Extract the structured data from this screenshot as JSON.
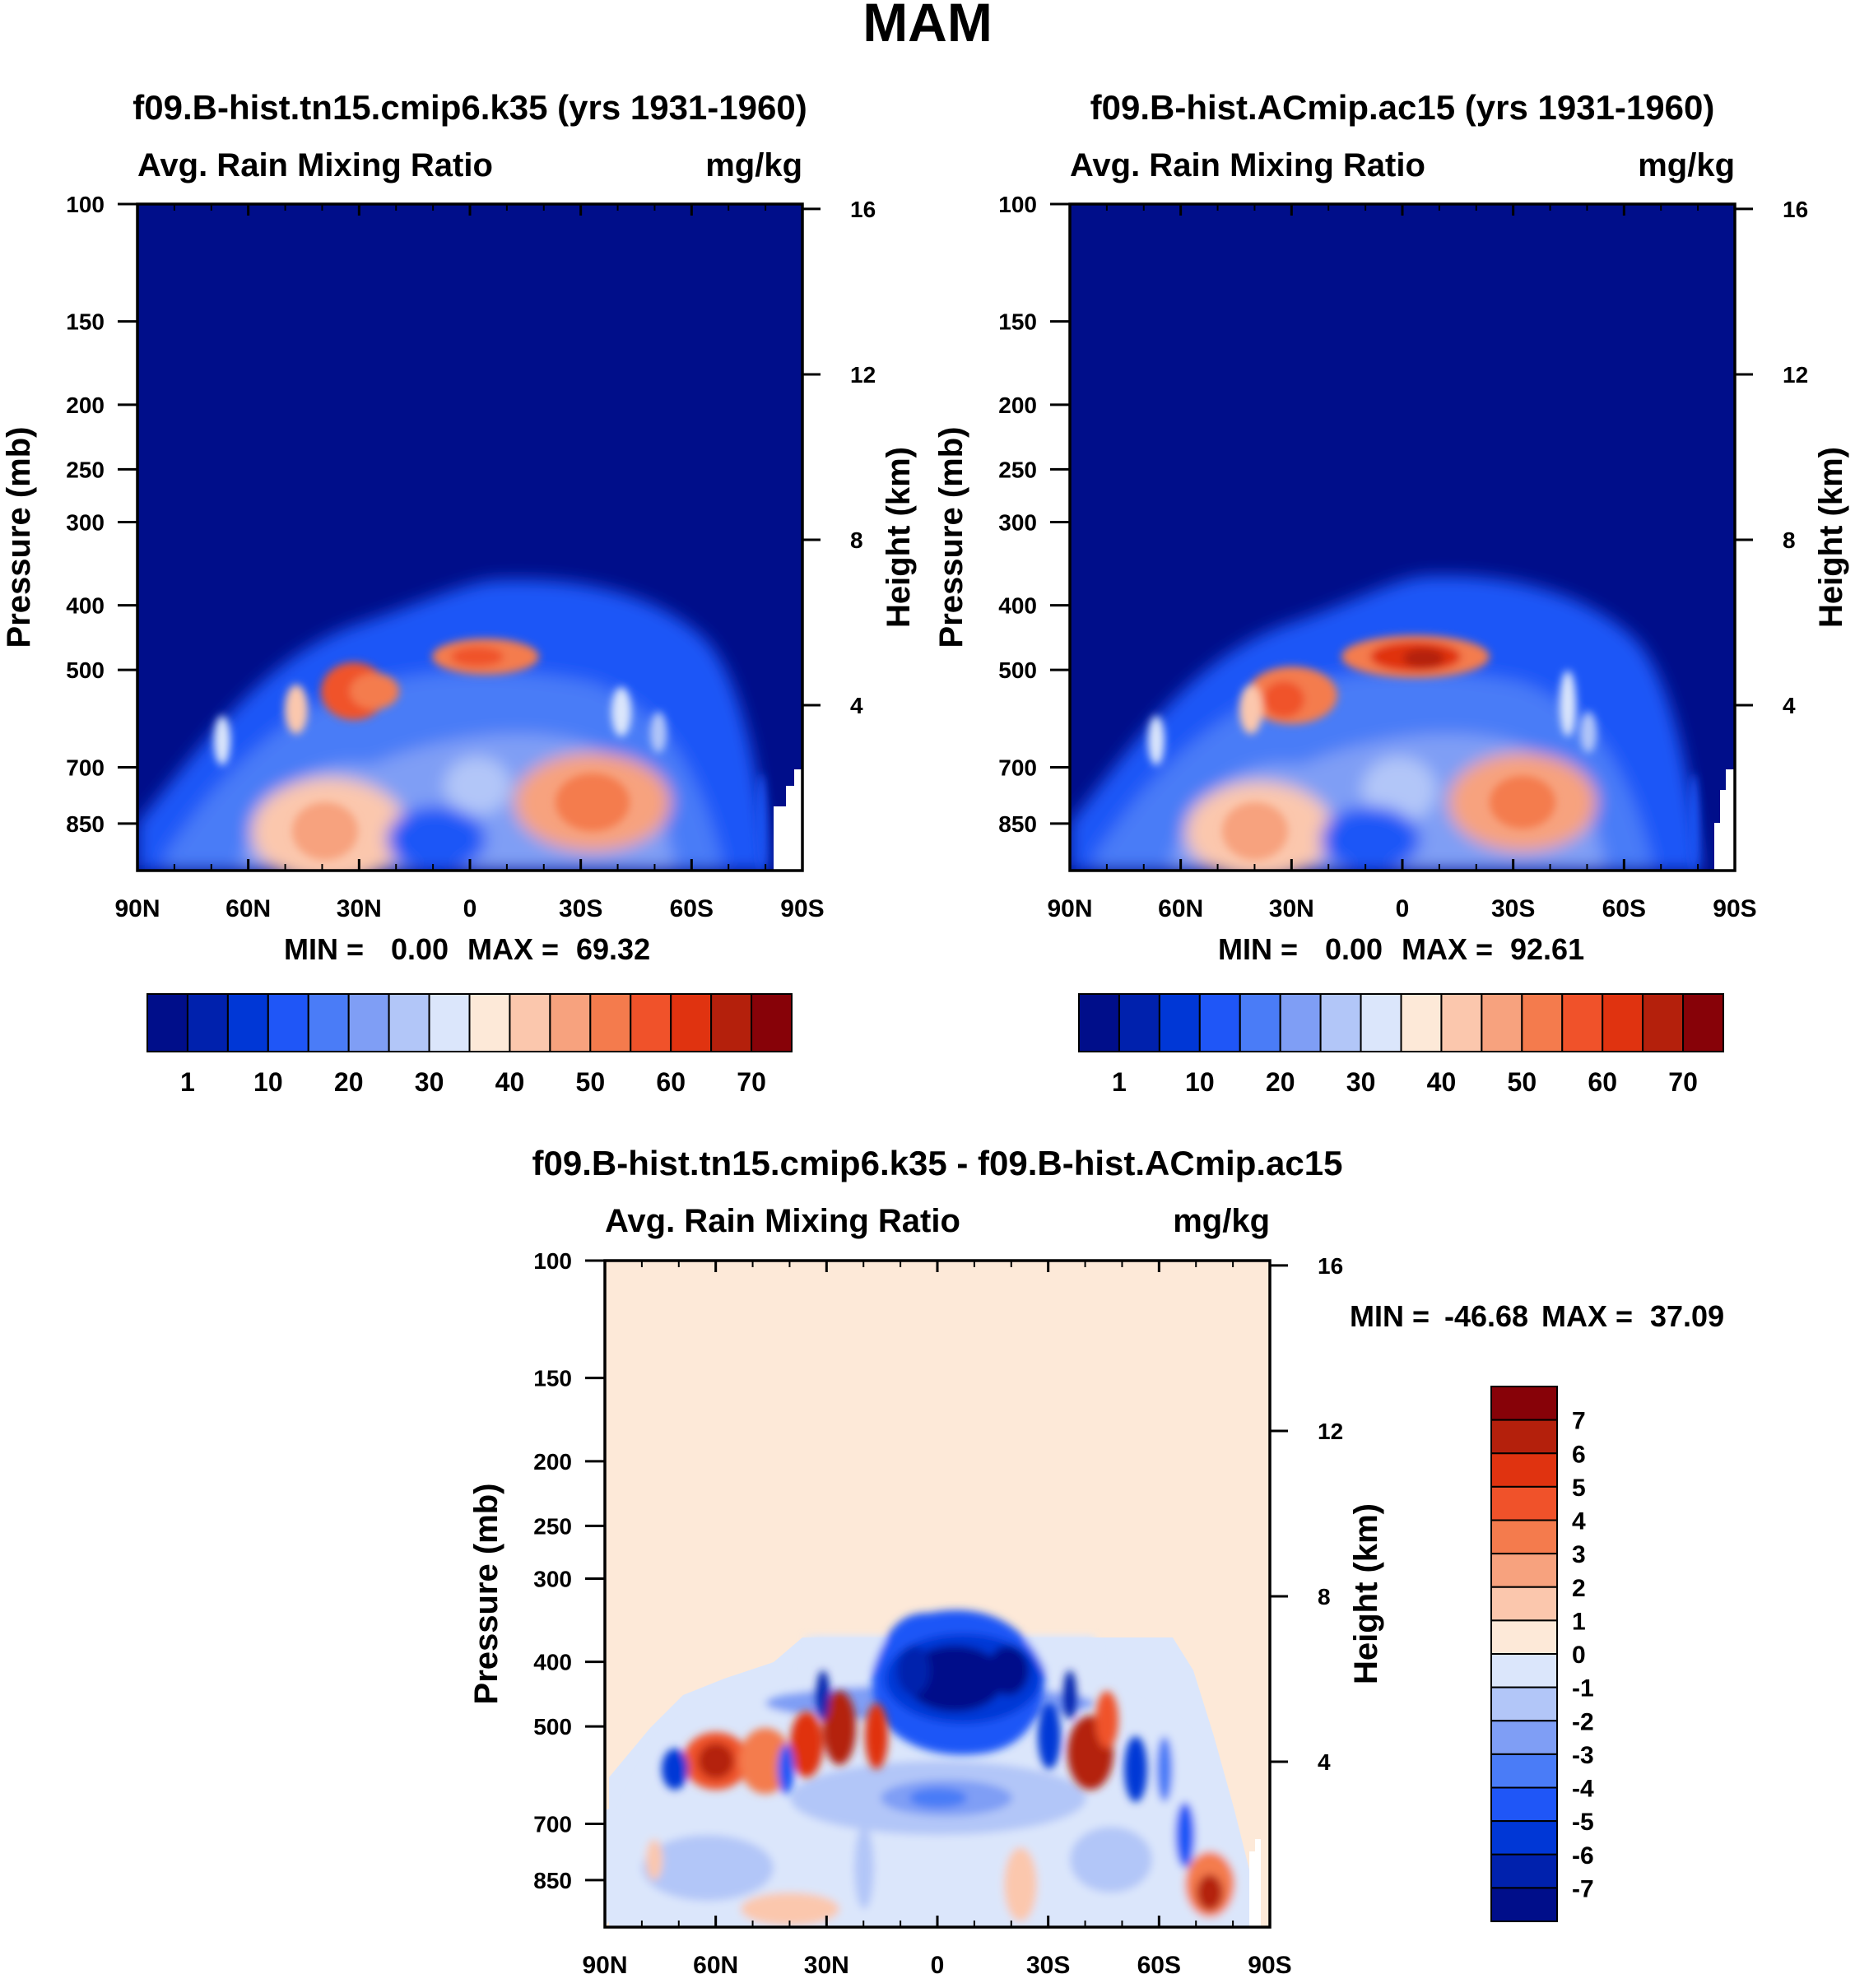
{
  "page_title": "MAM",
  "colors": {
    "abs": [
      "#000e8a",
      "#0021ad",
      "#0037d6",
      "#1f56f7",
      "#4a7cf7",
      "#7f9ef5",
      "#b2c6f8",
      "#dbe6fb",
      "#fde9d8",
      "#fbc7ad",
      "#f7a27e",
      "#f47b4d",
      "#f0522a",
      "#e03310",
      "#b4200c",
      "#870208"
    ],
    "diff": [
      "#000e8a",
      "#0021ad",
      "#0037d6",
      "#1f56f7",
      "#4a7cf7",
      "#7f9ef5",
      "#b2c6f8",
      "#dbe6fb",
      "#fde9d8",
      "#fbc7ad",
      "#f7a27e",
      "#f47b4d",
      "#f0522a",
      "#e03310",
      "#b4200c",
      "#870208"
    ]
  },
  "chart_data": [
    {
      "id": "panel-ctrl",
      "type": "heatmap",
      "title": "f09.B-hist.tn15.cmip6.k35 (yrs 1931-1960)",
      "left_label": "Avg. Rain Mixing Ratio",
      "right_label": "mg/kg",
      "ylabel": "Pressure (mb)",
      "ylabel_right": "Height (km)",
      "x_ticks": [
        "90N",
        "60N",
        "30N",
        "0",
        "30S",
        "60S",
        "90S"
      ],
      "x_values": [
        90,
        60,
        30,
        0,
        -30,
        -60,
        -90
      ],
      "y_ticks": [
        100,
        150,
        200,
        250,
        300,
        400,
        500,
        700,
        850
      ],
      "ylim_mb": [
        1000,
        100
      ],
      "height_ticks_km": [
        16,
        12,
        8,
        4
      ],
      "min_label": "MIN =",
      "min_value": "0.00",
      "max_label": "MAX =",
      "max_value": "69.32",
      "colorbar_labels": [
        "1",
        "10",
        "20",
        "30",
        "40",
        "50",
        "60",
        "70"
      ]
    },
    {
      "id": "panel-exp",
      "type": "heatmap",
      "title": "f09.B-hist.ACmip.ac15 (yrs 1931-1960)",
      "left_label": "Avg. Rain Mixing Ratio",
      "right_label": "mg/kg",
      "ylabel": "Pressure (mb)",
      "ylabel_right": "Height (km)",
      "x_ticks": [
        "90N",
        "60N",
        "30N",
        "0",
        "30S",
        "60S",
        "90S"
      ],
      "x_values": [
        90,
        60,
        30,
        0,
        -30,
        -60,
        -90
      ],
      "y_ticks": [
        100,
        150,
        200,
        250,
        300,
        400,
        500,
        700,
        850
      ],
      "ylim_mb": [
        1000,
        100
      ],
      "height_ticks_km": [
        16,
        12,
        8,
        4
      ],
      "min_label": "MIN =",
      "min_value": "0.00",
      "max_label": "MAX =",
      "max_value": "92.61",
      "colorbar_labels": [
        "1",
        "10",
        "20",
        "30",
        "40",
        "50",
        "60",
        "70"
      ]
    },
    {
      "id": "panel-diff",
      "type": "heatmap",
      "title": "f09.B-hist.tn15.cmip6.k35 - f09.B-hist.ACmip.ac15",
      "left_label": "Avg. Rain Mixing Ratio",
      "right_label": "mg/kg",
      "ylabel": "Pressure (mb)",
      "ylabel_right": "Height (km)",
      "x_ticks": [
        "90N",
        "60N",
        "30N",
        "0",
        "30S",
        "60S",
        "90S"
      ],
      "x_values": [
        90,
        60,
        30,
        0,
        -30,
        -60,
        -90
      ],
      "y_ticks": [
        100,
        150,
        200,
        250,
        300,
        400,
        500,
        700,
        850
      ],
      "ylim_mb": [
        1000,
        100
      ],
      "height_ticks_km": [
        16,
        12,
        8,
        4
      ],
      "min_label": "MIN =",
      "min_value": "-46.68",
      "max_label": "MAX =",
      "max_value": "37.09",
      "colorbar_labels": [
        "7",
        "6",
        "5",
        "4",
        "3",
        "2",
        "1",
        "0",
        "-1",
        "-2",
        "-3",
        "-4",
        "-5",
        "-6",
        "-7"
      ]
    }
  ]
}
